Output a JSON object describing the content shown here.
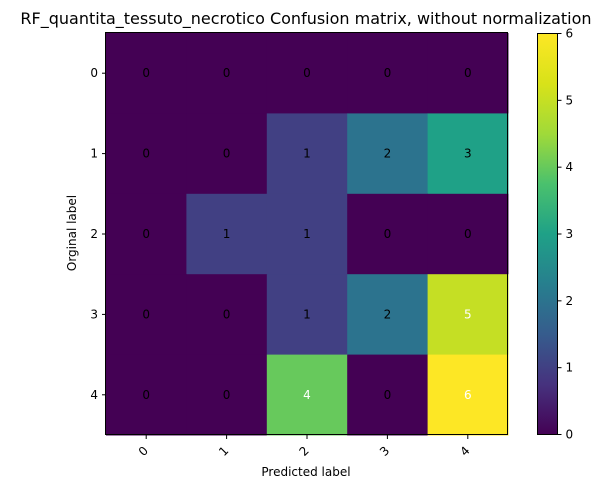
{
  "chart_data": {
    "type": "heatmap",
    "title": "RF_quantita_tessuto_necrotico Confusion matrix, without normalization",
    "xlabel": "Predicted label",
    "ylabel": "Orginal label",
    "x_categories": [
      "0",
      "1",
      "2",
      "3",
      "4"
    ],
    "y_categories": [
      "0",
      "1",
      "2",
      "3",
      "4"
    ],
    "values": [
      [
        0,
        0,
        0,
        0,
        0
      ],
      [
        0,
        0,
        1,
        2,
        3
      ],
      [
        0,
        1,
        1,
        0,
        0
      ],
      [
        0,
        0,
        1,
        2,
        5
      ],
      [
        0,
        0,
        4,
        0,
        6
      ]
    ],
    "colormap": "viridis",
    "vmin": 0,
    "vmax": 6,
    "colorbar_ticks": [
      "0",
      "1",
      "2",
      "3",
      "4",
      "5",
      "6"
    ],
    "text_colors": {
      "dark": "#000000",
      "light": "#ffffff"
    }
  }
}
